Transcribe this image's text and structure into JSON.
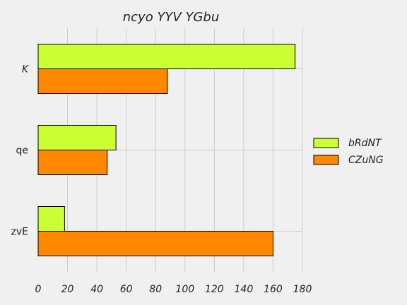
{
  "chart_data": {
    "type": "bar",
    "orientation": "horizontal",
    "title": "ncyo  YYV  YGbu",
    "categories": [
      "K",
      "qe",
      "zvE"
    ],
    "series": [
      {
        "name": "bRdNT",
        "values": [
          175,
          53,
          18
        ],
        "color": "#ccff33"
      },
      {
        "name": "CZuNG",
        "values": [
          88,
          47,
          160
        ],
        "color": "#ff8800"
      }
    ],
    "xlim": [
      0,
      180
    ],
    "xticks": [
      0,
      20,
      40,
      60,
      80,
      100,
      120,
      140,
      160,
      180
    ],
    "grid": true,
    "legend_position": "right"
  }
}
